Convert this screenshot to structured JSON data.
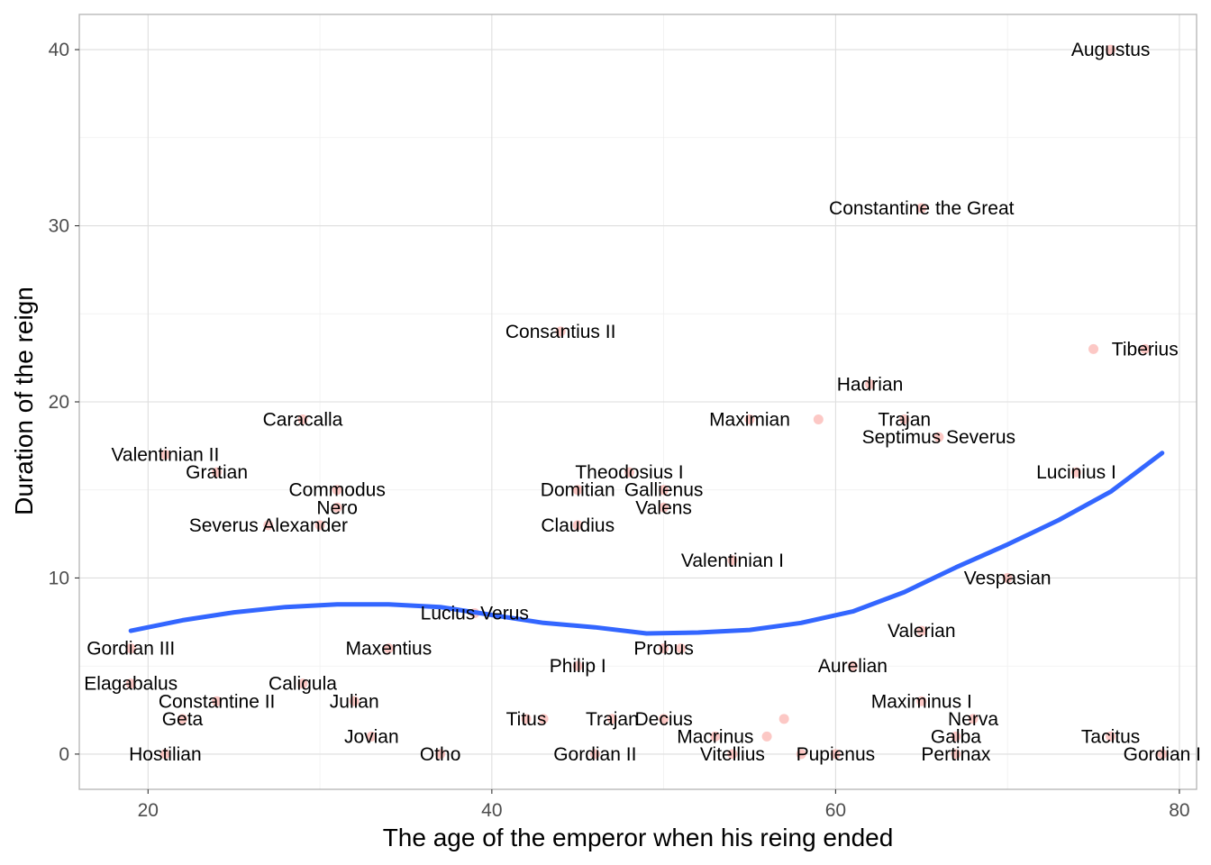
{
  "chart_data": {
    "type": "scatter",
    "xlabel": "The age of the emperor when his reing ended",
    "ylabel": "Duration of the reign",
    "xlim": [
      16,
      81
    ],
    "ylim": [
      -2,
      42
    ],
    "x_ticks": [
      20,
      40,
      60,
      80
    ],
    "y_ticks": [
      0,
      10,
      20,
      30,
      40
    ],
    "grid": true,
    "legend": "none",
    "point_color": "#F8766D",
    "smooth_color": "#3366FF",
    "points": [
      {
        "x": 76,
        "y": 40,
        "label": "Augustus"
      },
      {
        "x": 65,
        "y": 31,
        "label": "Constantine the Great"
      },
      {
        "x": 44,
        "y": 24,
        "label": "Consantius II"
      },
      {
        "x": 78,
        "y": 23,
        "label": "Tiberius"
      },
      {
        "x": 75,
        "y": 23,
        "label": ""
      },
      {
        "x": 62,
        "y": 21,
        "label": "Hadrian"
      },
      {
        "x": 29,
        "y": 19,
        "label": "Caracalla"
      },
      {
        "x": 55,
        "y": 19,
        "label": "Maximian"
      },
      {
        "x": 59,
        "y": 19,
        "label": ""
      },
      {
        "x": 64,
        "y": 19,
        "label": "Trajan"
      },
      {
        "x": 66,
        "y": 18,
        "label": "Septimus Severus"
      },
      {
        "x": 21,
        "y": 17,
        "label": "Valentinian II"
      },
      {
        "x": 24,
        "y": 16,
        "label": "Gratian"
      },
      {
        "x": 48,
        "y": 16,
        "label": "Theodosius I"
      },
      {
        "x": 74,
        "y": 16,
        "label": "Lucinius I"
      },
      {
        "x": 31,
        "y": 15,
        "label": "Commodus"
      },
      {
        "x": 45,
        "y": 15,
        "label": "Domitian"
      },
      {
        "x": 50,
        "y": 15,
        "label": "Gallienus"
      },
      {
        "x": 31,
        "y": 14,
        "label": "Nero"
      },
      {
        "x": 50,
        "y": 14,
        "label": "Valens"
      },
      {
        "x": 27,
        "y": 13,
        "label": "Severus Alexander"
      },
      {
        "x": 30,
        "y": 13,
        "label": ""
      },
      {
        "x": 45,
        "y": 13,
        "label": "Claudius"
      },
      {
        "x": 54,
        "y": 11,
        "label": "Valentinian I"
      },
      {
        "x": 70,
        "y": 10,
        "label": "Vespasian"
      },
      {
        "x": 39,
        "y": 8,
        "label": "Lucius Verus"
      },
      {
        "x": 65,
        "y": 7,
        "label": "Valerian"
      },
      {
        "x": 19,
        "y": 6,
        "label": "Gordian III"
      },
      {
        "x": 34,
        "y": 6,
        "label": "Maxentius"
      },
      {
        "x": 50,
        "y": 6,
        "label": "Probus"
      },
      {
        "x": 51,
        "y": 6,
        "label": ""
      },
      {
        "x": 45,
        "y": 5,
        "label": "Philip I"
      },
      {
        "x": 61,
        "y": 5,
        "label": "Aurelian"
      },
      {
        "x": 19,
        "y": 4,
        "label": "Elagabalus"
      },
      {
        "x": 29,
        "y": 4,
        "label": "Caligula"
      },
      {
        "x": 24,
        "y": 3,
        "label": "Constantine II"
      },
      {
        "x": 32,
        "y": 3,
        "label": "Julian"
      },
      {
        "x": 65,
        "y": 3,
        "label": "Maximinus I"
      },
      {
        "x": 22,
        "y": 2,
        "label": "Geta"
      },
      {
        "x": 42,
        "y": 2,
        "label": "Titus"
      },
      {
        "x": 43,
        "y": 2,
        "label": ""
      },
      {
        "x": 47,
        "y": 2,
        "label": "Trajan"
      },
      {
        "x": 50,
        "y": 2,
        "label": "Decius"
      },
      {
        "x": 57,
        "y": 2,
        "label": ""
      },
      {
        "x": 68,
        "y": 2,
        "label": "Nerva"
      },
      {
        "x": 33,
        "y": 1,
        "label": "Jovian"
      },
      {
        "x": 53,
        "y": 1,
        "label": "Macrinus"
      },
      {
        "x": 56,
        "y": 1,
        "label": ""
      },
      {
        "x": 67,
        "y": 1,
        "label": "Galba"
      },
      {
        "x": 76,
        "y": 1,
        "label": "Tacitus"
      },
      {
        "x": 21,
        "y": 0,
        "label": "Hostilian"
      },
      {
        "x": 37,
        "y": 0,
        "label": "Otho"
      },
      {
        "x": 46,
        "y": 0,
        "label": "Gordian II"
      },
      {
        "x": 54,
        "y": 0,
        "label": "Vitellius"
      },
      {
        "x": 58,
        "y": 0,
        "label": ""
      },
      {
        "x": 60,
        "y": 0,
        "label": "Pupienus"
      },
      {
        "x": 67,
        "y": 0,
        "label": "Pertinax"
      },
      {
        "x": 79,
        "y": 0,
        "label": "Gordian I"
      }
    ],
    "smooth_line": [
      [
        19,
        7.0
      ],
      [
        22,
        7.6
      ],
      [
        25,
        8.05
      ],
      [
        28,
        8.35
      ],
      [
        31,
        8.5
      ],
      [
        34,
        8.5
      ],
      [
        37,
        8.35
      ],
      [
        40,
        7.9
      ],
      [
        43,
        7.45
      ],
      [
        46,
        7.2
      ],
      [
        49,
        6.85
      ],
      [
        52,
        6.9
      ],
      [
        55,
        7.05
      ],
      [
        58,
        7.45
      ],
      [
        61,
        8.1
      ],
      [
        64,
        9.2
      ],
      [
        67,
        10.6
      ],
      [
        70,
        11.9
      ],
      [
        73,
        13.3
      ],
      [
        76,
        14.9
      ],
      [
        79,
        17.1
      ]
    ]
  }
}
